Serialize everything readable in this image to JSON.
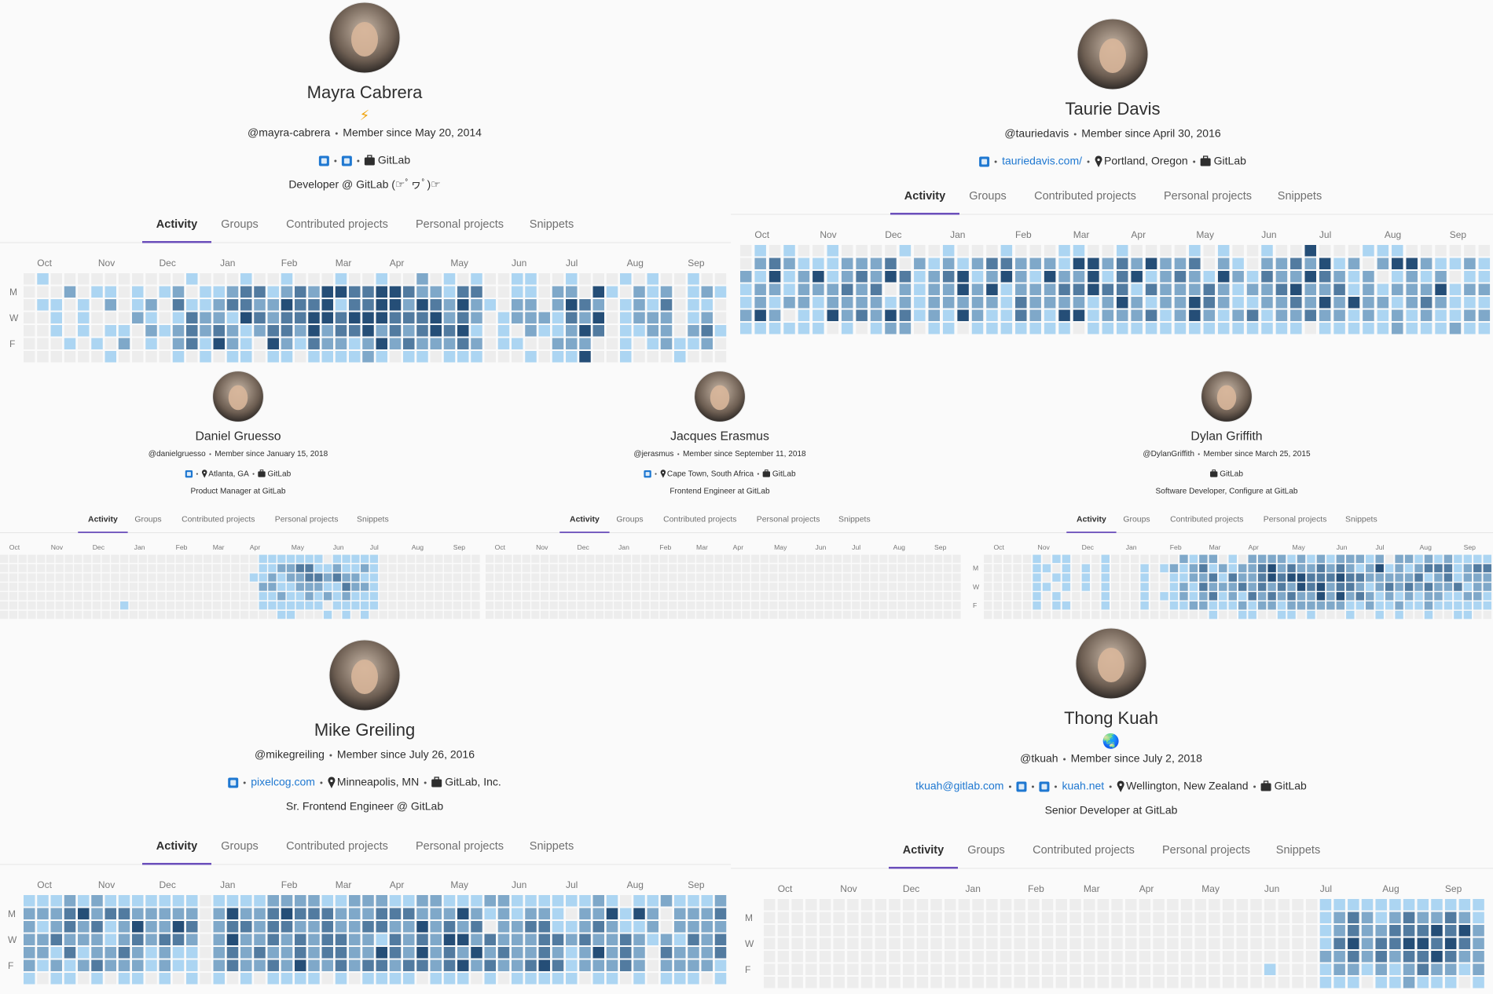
{
  "tabs": [
    "Activity",
    "Groups",
    "Contributed projects",
    "Personal projects",
    "Snippets"
  ],
  "months": [
    "Oct",
    "Nov",
    "Dec",
    "Jan",
    "Feb",
    "Mar",
    "Apr",
    "May",
    "Jun",
    "Jul",
    "Aug",
    "Sep"
  ],
  "day_labels": [
    "M",
    "W",
    "F"
  ],
  "level_colors": [
    "#ededed",
    "#acd5f2",
    "#7fa8c9",
    "#527ba0",
    "#254e77"
  ],
  "profiles": [
    {
      "name": "Mayra Cabrera",
      "emoji": "⚡",
      "username": "@mayra-cabrera",
      "member_since": "Member since May 20, 2014",
      "links": [
        {
          "icon": "linkedin"
        },
        {
          "icon": "twitter"
        },
        {
          "icon": "briefcase",
          "text": "GitLab"
        }
      ],
      "bio": "Developer @ GitLab (☞ﾟヮﾟ)☞",
      "day_labels_shown": true,
      "activity": [
        "0100000000001000100100010010020101001100100010100100",
        "0002011010120112331232443344322133001102204102120121",
        "0110102012031123322433413344243242102202432012130110",
        "0010100021013221432334434443334232012221324012220120",
        "0010101102123232123324233423234341010211243011220231",
        "0001010201023142104213221242322232011002220010121120",
        "0000001000010101101101111210110111000101140010001000"
      ]
    },
    {
      "name": "Taurie Davis",
      "username": "@tauriedavis",
      "member_since": "Member since April 30, 2016",
      "links": [
        {
          "icon": "twitter"
        },
        {
          "icon": "web",
          "text": "tauriedavis.com/"
        },
        {
          "icon": "pin",
          "text": "Portland, Oregon"
        },
        {
          "icon": "briefcase",
          "text": "GitLab"
        }
      ],
      "day_labels_shown": false,
      "activity": [
        "0101001000010010001000110010000101001004000111000000",
        "0232111222302121233222144232422302102232412024421121",
        "2141241232431234124214224134123214213224321201212011",
        "1221222323021224241222334331322232122342231212224122",
        "1212212222121222221322221242122432112232424221232111",
        "2420114232431214211321441222312421231223221212121122",
        "1111110101220110111111101111111111111110111112111211"
      ]
    },
    {
      "name": "Daniel Gruesso",
      "username": "@danielgruesso",
      "member_since": "Member since January 15, 2018",
      "links": [
        {
          "icon": "twitter"
        },
        {
          "icon": "pin",
          "text": "Atlanta, GA"
        },
        {
          "icon": "briefcase",
          "text": "GitLab"
        }
      ],
      "bio": "Product Manager at GitLab",
      "day_labels_shown": false,
      "activity": [
        "0000000000000000000000000000111111101111100000000000",
        "0000000000000000000000000000112233112112100000000000",
        "0000000000000000000000000001121223323221100000000000",
        "0000000000000000000000000000221122211322100000000000",
        "0000000000000000000000000000112112121211100000000000",
        "0000000000000100000000000000111111101111100000000000",
        "0000000000000000000000000000001100010101000000000000"
      ]
    },
    {
      "name": "Jacques Erasmus",
      "username": "@jerasmus",
      "member_since": "Member since September 11, 2018",
      "links": [
        {
          "icon": "linkedin"
        },
        {
          "icon": "pin",
          "text": "Cape Town, South Africa"
        },
        {
          "icon": "briefcase",
          "text": "GitLab"
        }
      ],
      "bio": "Frontend Engineer at GitLab",
      "day_labels_shown": false,
      "activity": [
        "0000000000000000000000000000000000000000000000000000",
        "0000000000000000000000000000000000000000000000000000",
        "0000000000000000000000000000000000000000000000000000",
        "0000000000000000000000000000000000000000000000000000",
        "0000000000000000000000000000000000000000000000000000",
        "0000000000000000000000000000000000000000000000000000",
        "0000000000000000000000000000000000000000000000000000"
      ]
    },
    {
      "name": "Dylan Griffith",
      "username": "@DylanGriffith",
      "member_since": "Member since March 25, 2015",
      "links": [
        {
          "icon": "briefcase",
          "text": "GitLab"
        }
      ],
      "bio": "Software Developer, Configure at GitLab",
      "day_labels_shown": true,
      "activity": [
        "0000010110001000000021220102222121212221202212121111",
        "0000011010101000101212312122342322323212412123331233",
        "0000010110101000100112231322343443334332222231231222",
        "0000011010101000100121322232323243423321232323223122",
        "0000010100001000101121231213232322424232121212211221",
        "0000010110001000100112211121221222222112112112111111",
        "0000000000000000000000010011001101000100101001001100"
      ]
    },
    {
      "name": "Mike Greiling",
      "username": "@mikegreiling",
      "member_since": "Member since July 26, 2016",
      "links": [
        {
          "icon": "twitter"
        },
        {
          "icon": "web",
          "text": "pixelcog.com"
        },
        {
          "icon": "pin",
          "text": "Minneapolis, MN"
        },
        {
          "icon": "briefcase",
          "text": "GitLab, Inc."
        }
      ],
      "bio": "Sr. Frontend Engineer @ GitLab",
      "day_labels_shown": true,
      "activity": [
        "1112121111111011112222112221122111221111112101121112",
        "2223423322222024223433322233322242121221022414202223",
        "2123231242243023323322322332242323022331123211202222",
        "2232221232332024223232332213232442322233232232121323",
        "2213122321211023232232332243242324232232124232032223",
        "2121232221211023223242232332332342322343122232022221",
        "1011010110101010101111010111101110101111101101011101"
      ]
    },
    {
      "name": "Thong Kuah",
      "emoji": "🌏",
      "username": "@tkuah",
      "member_since": "Member since July 2, 2018",
      "links": [
        {
          "icon": "email",
          "text": "tkuah@gitlab.com"
        },
        {
          "icon": "linkedin"
        },
        {
          "icon": "twitter"
        },
        {
          "icon": "web",
          "text": "kuah.net"
        },
        {
          "icon": "pin",
          "text": "Wellington, New Zealand"
        },
        {
          "icon": "briefcase",
          "text": "GitLab"
        }
      ],
      "bio": "Senior Developer at GitLab",
      "day_labels_shown": true,
      "activity": [
        "0000000000000000000000000000000000000000111111111111",
        "0000000000000000000000000000000000000000123212322321",
        "0000000000000000000000000000000000000000123223334342",
        "0000000000000000000000000000000000000000134233443432",
        "0000000000000000000000000000000000000000223232334322",
        "0000000000000000000000000000000000001000122121232212",
        "0000000000000000000000000000000000000000111011211101"
      ]
    }
  ]
}
